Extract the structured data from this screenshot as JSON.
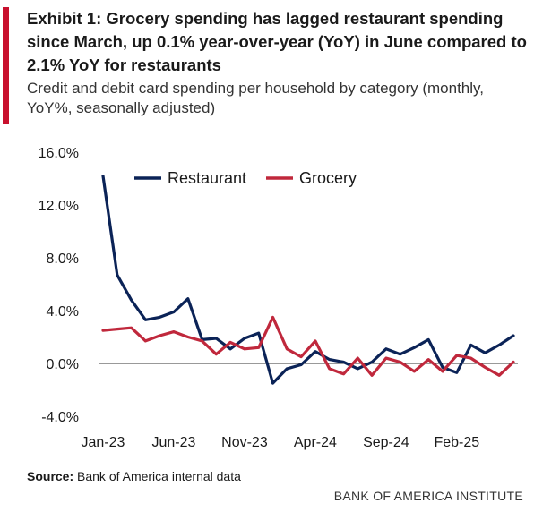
{
  "header": {
    "title": "Exhibit 1: Grocery spending has lagged restaurant spending since March, up 0.1% year-over-year (YoY) in June compared to 2.1% YoY for restaurants",
    "subtitle": "Credit and debit card spending per household by category (monthly, YoY%, seasonally adjusted)"
  },
  "footer": {
    "source_label": "Source:",
    "source_text": "Bank of America internal data",
    "brand": "BANK OF AMERICA INSTITUTE"
  },
  "chart_data": {
    "type": "line",
    "x": [
      "Jan-23",
      "Feb-23",
      "Mar-23",
      "Apr-23",
      "May-23",
      "Jun-23",
      "Jul-23",
      "Aug-23",
      "Sep-23",
      "Oct-23",
      "Nov-23",
      "Dec-23",
      "Jan-24",
      "Feb-24",
      "Mar-24",
      "Apr-24",
      "May-24",
      "Jun-24",
      "Jul-24",
      "Aug-24",
      "Sep-24",
      "Oct-24",
      "Nov-24",
      "Dec-24",
      "Jan-25",
      "Feb-25",
      "Mar-25",
      "Apr-25",
      "May-25",
      "Jun-25"
    ],
    "x_tick_labels": [
      "Jan-23",
      "Jun-23",
      "Nov-23",
      "Apr-24",
      "Sep-24",
      "Feb-25"
    ],
    "y_tick_labels": [
      "16.0%",
      "12.0%",
      "8.0%",
      "4.0%",
      "0.0%",
      "-4.0%"
    ],
    "ylim": [
      -4,
      16
    ],
    "legend_position": "top",
    "series": [
      {
        "name": "Restaurant",
        "color": "#0b2357",
        "values": [
          14.2,
          6.7,
          4.8,
          3.3,
          3.5,
          3.9,
          4.9,
          1.8,
          1.9,
          1.1,
          1.9,
          2.3,
          -1.5,
          -0.4,
          -0.1,
          0.9,
          0.3,
          0.1,
          -0.4,
          0.1,
          1.1,
          0.7,
          1.2,
          1.8,
          -0.3,
          -0.7,
          1.4,
          0.8,
          1.4,
          2.1
        ]
      },
      {
        "name": "Grocery",
        "color": "#c0283c",
        "values": [
          2.5,
          2.6,
          2.7,
          1.7,
          2.1,
          2.4,
          2.0,
          1.7,
          0.7,
          1.6,
          1.1,
          1.2,
          3.5,
          1.1,
          0.5,
          1.7,
          -0.4,
          -0.8,
          0.4,
          -0.9,
          0.4,
          0.1,
          -0.6,
          0.3,
          -0.6,
          0.6,
          0.4,
          -0.3,
          -0.9,
          0.1
        ]
      }
    ]
  }
}
